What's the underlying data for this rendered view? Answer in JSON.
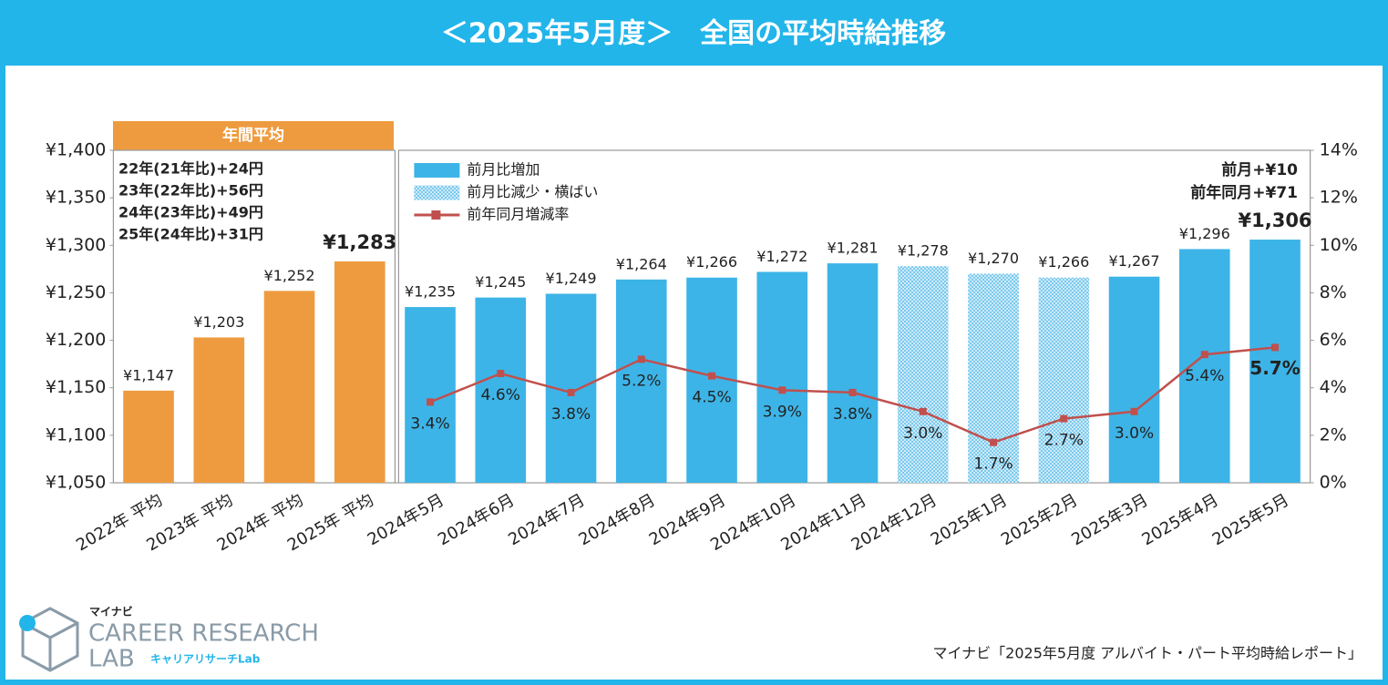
{
  "chart_data": {
    "type": "bar",
    "title": "＜2025年5月度＞　全国の平均時給推移",
    "categories": [
      "2022年 平均",
      "2023年 平均",
      "2024年 平均",
      "2025年 平均",
      "2024年5月",
      "2024年6月",
      "2024年7月",
      "2024年8月",
      "2024年9月",
      "2024年10月",
      "2024年11月",
      "2024年12月",
      "2025年1月",
      "2025年2月",
      "2025年3月",
      "2025年4月",
      "2025年5月"
    ],
    "series": [
      {
        "name": "年間平均",
        "color": "#ee9b3f",
        "type": "bar",
        "values": [
          1147,
          1203,
          1252,
          1283,
          null,
          null,
          null,
          null,
          null,
          null,
          null,
          null,
          null,
          null,
          null,
          null,
          null
        ],
        "value_labels": [
          "¥1,147",
          "¥1,203",
          "¥1,252",
          "¥1,283",
          null,
          null,
          null,
          null,
          null,
          null,
          null,
          null,
          null,
          null,
          null,
          null,
          null
        ]
      },
      {
        "name": "前月比増加",
        "color": "#3db4e7",
        "type": "bar",
        "values": [
          null,
          null,
          null,
          null,
          1235,
          1245,
          1249,
          1264,
          1266,
          1272,
          1281,
          null,
          null,
          null,
          1267,
          1296,
          1306
        ],
        "value_labels": [
          null,
          null,
          null,
          null,
          "¥1,235",
          "¥1,245",
          "¥1,249",
          "¥1,264",
          "¥1,266",
          "¥1,272",
          "¥1,281",
          null,
          null,
          null,
          "¥1,267",
          "¥1,296",
          "¥1,306"
        ]
      },
      {
        "name": "前月比減少・横ばい",
        "color": "#3db4e7",
        "type": "bar",
        "pattern": "dots",
        "values": [
          null,
          null,
          null,
          null,
          null,
          null,
          null,
          null,
          null,
          null,
          null,
          1278,
          1270,
          1266,
          null,
          null,
          null
        ],
        "value_labels": [
          null,
          null,
          null,
          null,
          null,
          null,
          null,
          null,
          null,
          null,
          null,
          "¥1,278",
          "¥1,270",
          "¥1,266",
          null,
          null,
          null
        ]
      },
      {
        "name": "前年同月増減率",
        "color": "#c0504d",
        "type": "line",
        "axis": "y2",
        "values": [
          null,
          null,
          null,
          null,
          3.4,
          4.6,
          3.8,
          5.2,
          4.5,
          3.9,
          3.8,
          3.0,
          1.7,
          2.7,
          3.0,
          5.4,
          5.7
        ],
        "value_labels": [
          null,
          null,
          null,
          null,
          "3.4%",
          "4.6%",
          "3.8%",
          "5.2%",
          "4.5%",
          "3.9%",
          "3.8%",
          "3.0%",
          "1.7%",
          "2.7%",
          "3.0%",
          "5.4%",
          "5.7%"
        ]
      }
    ],
    "ylim": [
      1050,
      1400
    ],
    "yticks": [
      {
        "value": 1050,
        "label": "¥1,050"
      },
      {
        "value": 1100,
        "label": "¥1,100"
      },
      {
        "value": 1150,
        "label": "¥1,150"
      },
      {
        "value": 1200,
        "label": "¥1,200"
      },
      {
        "value": 1250,
        "label": "¥1,250"
      },
      {
        "value": 1300,
        "label": "¥1,300"
      },
      {
        "value": 1350,
        "label": "¥1,350"
      },
      {
        "value": 1400,
        "label": "¥1,400"
      }
    ],
    "y2lim": [
      0,
      14
    ],
    "y2ticks": [
      {
        "value": 0,
        "label": "0%"
      },
      {
        "value": 2,
        "label": "2%"
      },
      {
        "value": 4,
        "label": "4%"
      },
      {
        "value": 6,
        "label": "6%"
      },
      {
        "value": 8,
        "label": "8%"
      },
      {
        "value": 10,
        "label": "10%"
      },
      {
        "value": 12,
        "label": "12%"
      },
      {
        "value": 14,
        "label": "14%"
      }
    ],
    "legend": "top-left",
    "grid": false,
    "annotations": {
      "annual_header": "年間平均",
      "annual_notes": [
        "22年(21年比)+24円",
        "23年(22年比)+56円",
        "24年(23年比)+49円",
        "25年(24年比)+31円"
      ],
      "latest_notes": [
        "前月+¥10",
        "前年同月+¥71"
      ]
    }
  },
  "footer": {
    "source": "マイナビ「2025年5月度 アルバイト・パート平均時給レポート」",
    "logo": {
      "brand": "マイナビ",
      "line1": "CAREER RESEARCH",
      "line2": "LAB",
      "sub": "キャリアリサーチLab"
    }
  }
}
